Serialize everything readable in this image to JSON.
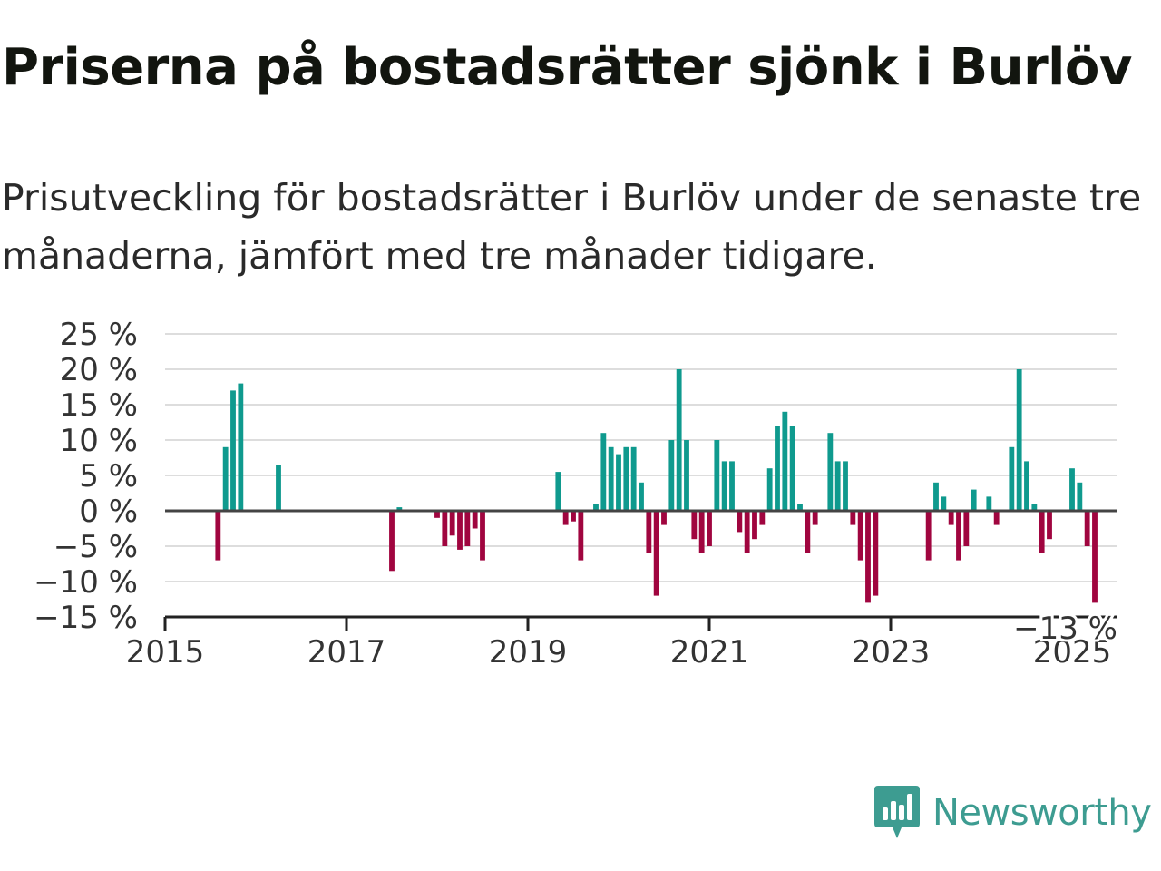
{
  "title": "Priserna på bostadsrätter sjönk i Burlöv",
  "subtitle": "Prisutveckling för bostadsrätter i Burlöv under de senaste tre månaderna, jämfört med tre månader tidigare.",
  "brand": {
    "name": "Newsworthy",
    "color": "#3d9c91"
  },
  "colors": {
    "positive": "#0f9a8e",
    "negative": "#a0053f",
    "grid": "#dddddd",
    "zero_line": "#444444"
  },
  "chart_data": {
    "type": "bar",
    "x_unit": "month",
    "ylim": [
      -15,
      25
    ],
    "yticks": [
      -15,
      -10,
      -5,
      0,
      5,
      10,
      15,
      20,
      25
    ],
    "ytick_labels": [
      "−15 %",
      "−10 %",
      "−5 %",
      "0 %",
      "5 %",
      "10 %",
      "15 %",
      "20 %",
      "25 %"
    ],
    "xlim": [
      "2015-01",
      "2025-07"
    ],
    "xticks": [
      "2015-01",
      "2017-01",
      "2019-01",
      "2021-01",
      "2023-01",
      "2025-01"
    ],
    "xtick_labels": [
      "2015",
      "2017",
      "2019",
      "2021",
      "2023",
      "2025"
    ],
    "grid": true,
    "last_value_label": "−13 %",
    "series": [
      {
        "points": [
          [
            "2015-08",
            -7
          ],
          [
            "2015-09",
            9
          ],
          [
            "2015-10",
            17
          ],
          [
            "2015-11",
            18
          ],
          [
            "2016-04",
            6.5
          ],
          [
            "2017-07",
            -8.5
          ],
          [
            "2017-08",
            0.5
          ],
          [
            "2018-01",
            -1
          ],
          [
            "2018-02",
            -5
          ],
          [
            "2018-03",
            -3.5
          ],
          [
            "2018-04",
            -5.5
          ],
          [
            "2018-05",
            -5
          ],
          [
            "2018-06",
            -2.5
          ],
          [
            "2018-07",
            -7
          ],
          [
            "2019-05",
            5.5
          ],
          [
            "2019-06",
            -2
          ],
          [
            "2019-07",
            -1.5
          ],
          [
            "2019-08",
            -7
          ],
          [
            "2019-10",
            1
          ],
          [
            "2019-11",
            11
          ],
          [
            "2019-12",
            9
          ],
          [
            "2020-01",
            8
          ],
          [
            "2020-02",
            9
          ],
          [
            "2020-03",
            9
          ],
          [
            "2020-04",
            4
          ],
          [
            "2020-05",
            -6
          ],
          [
            "2020-06",
            -12
          ],
          [
            "2020-07",
            -2
          ],
          [
            "2020-08",
            10
          ],
          [
            "2020-09",
            20
          ],
          [
            "2020-10",
            10
          ],
          [
            "2020-11",
            -4
          ],
          [
            "2020-12",
            -6
          ],
          [
            "2021-01",
            -5
          ],
          [
            "2021-02",
            10
          ],
          [
            "2021-03",
            7
          ],
          [
            "2021-04",
            7
          ],
          [
            "2021-05",
            -3
          ],
          [
            "2021-06",
            -6
          ],
          [
            "2021-07",
            -4
          ],
          [
            "2021-08",
            -2
          ],
          [
            "2021-09",
            6
          ],
          [
            "2021-10",
            12
          ],
          [
            "2021-11",
            14
          ],
          [
            "2021-12",
            12
          ],
          [
            "2022-01",
            1
          ],
          [
            "2022-02",
            -6
          ],
          [
            "2022-03",
            -2
          ],
          [
            "2022-05",
            11
          ],
          [
            "2022-06",
            7
          ],
          [
            "2022-07",
            7
          ],
          [
            "2022-08",
            -2
          ],
          [
            "2022-09",
            -7
          ],
          [
            "2022-10",
            -13
          ],
          [
            "2022-11",
            -12
          ],
          [
            "2023-06",
            -7
          ],
          [
            "2023-07",
            4
          ],
          [
            "2023-08",
            2
          ],
          [
            "2023-09",
            -2
          ],
          [
            "2023-10",
            -7
          ],
          [
            "2023-11",
            -5
          ],
          [
            "2023-12",
            3
          ],
          [
            "2024-02",
            2
          ],
          [
            "2024-03",
            -2
          ],
          [
            "2024-05",
            9
          ],
          [
            "2024-06",
            20
          ],
          [
            "2024-07",
            7
          ],
          [
            "2024-08",
            1
          ],
          [
            "2024-09",
            -6
          ],
          [
            "2024-10",
            -4
          ],
          [
            "2025-01",
            6
          ],
          [
            "2025-02",
            4
          ],
          [
            "2025-03",
            -5
          ],
          [
            "2025-04",
            -13
          ]
        ]
      }
    ]
  }
}
